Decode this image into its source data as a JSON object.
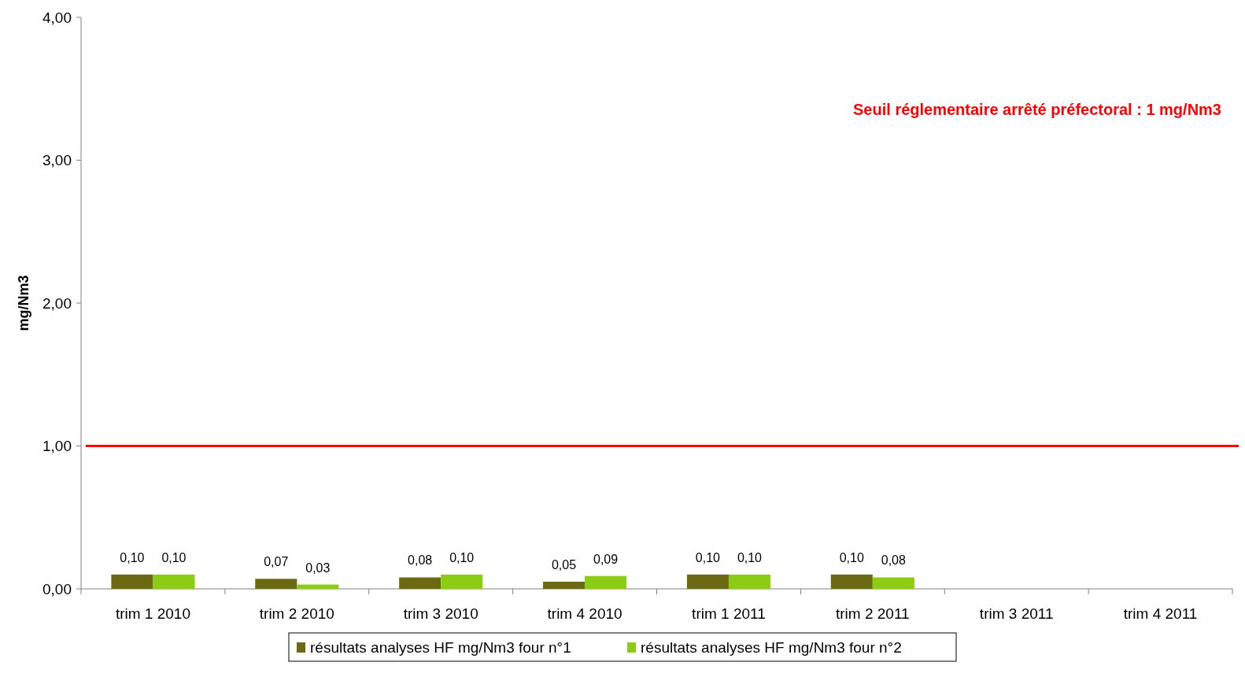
{
  "chart_data": {
    "type": "bar",
    "ylabel": "mg/Nm3",
    "categories": [
      "trim 1 2010",
      "trim 2 2010",
      "trim 3 2010",
      "trim 4 2010",
      "trim 1 2011",
      "trim 2 2011",
      "trim 3 2011",
      "trim 4 2011"
    ],
    "series": [
      {
        "name": "résultats analyses HF mg/Nm3 four n°1",
        "color": "#6b6a12",
        "values": [
          0.1,
          0.07,
          0.08,
          0.05,
          0.1,
          0.1,
          null,
          null
        ],
        "value_labels": [
          "0,10",
          "0,07",
          "0,08",
          "0,05",
          "0,10",
          "0,10",
          null,
          null
        ]
      },
      {
        "name": "résultats analyses HF mg/Nm3 four n°2",
        "color": "#8ccc14",
        "values": [
          0.1,
          0.03,
          0.1,
          0.09,
          0.1,
          0.08,
          null,
          null
        ],
        "value_labels": [
          "0,10",
          "0,03",
          "0,10",
          "0,09",
          "0,10",
          "0,08",
          null,
          null
        ]
      }
    ],
    "ylim": [
      0,
      4
    ],
    "yticks": [
      {
        "value": 0,
        "label": "0,00"
      },
      {
        "value": 1,
        "label": "1,00"
      },
      {
        "value": 2,
        "label": "2,00"
      },
      {
        "value": 3,
        "label": "3,00"
      },
      {
        "value": 4,
        "label": "4,00"
      }
    ],
    "ref_lines": [
      {
        "axis": "y",
        "value": 1,
        "label": "Seuil réglementaire arrêté préfectoral : 1 mg/Nm3",
        "color": "#ff0000"
      }
    ],
    "grid": false,
    "legend": "bottom"
  }
}
